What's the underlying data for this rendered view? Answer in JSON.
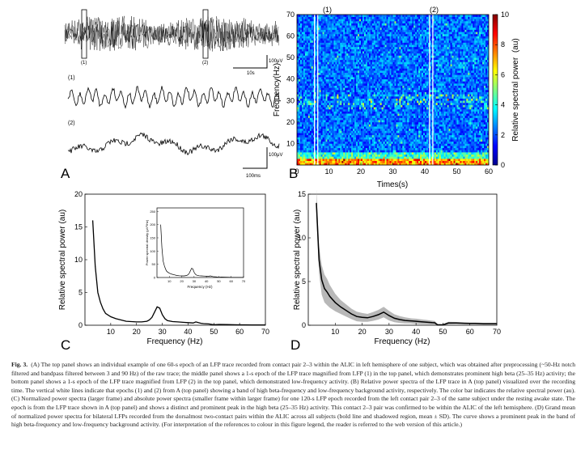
{
  "figure": {
    "panel_a": {
      "letter": "A",
      "epoch1_label": "(1)",
      "epoch2_label": "(2)",
      "top_scale_amp": "100μV",
      "top_scale_time": "10s",
      "mid_label": "(1)",
      "bottom_label": "(2)",
      "bottom_scale_amp": "100μV",
      "bottom_scale_time": "100ms"
    },
    "panel_b": {
      "letter": "B",
      "marker1": "(1)",
      "marker2": "(2)"
    },
    "panel_c": {
      "letter": "C"
    },
    "panel_d": {
      "letter": "D"
    }
  },
  "chart_data": [
    {
      "id": "B",
      "type": "heatmap",
      "xlabel": "Times(s)",
      "ylabel": "Frequency(Hz)",
      "colorbar_label": "Relative spectral power",
      "colorbar_label_suffix": "(au)",
      "xlim": [
        0,
        60
      ],
      "ylim": [
        0,
        70
      ],
      "xticks": [
        "0",
        "10",
        "20",
        "30",
        "40",
        "50",
        "60"
      ],
      "yticks": [
        "10",
        "20",
        "30",
        "40",
        "50",
        "60",
        "70"
      ],
      "colorbar_range": [
        0,
        10
      ],
      "colorbar_ticks": [
        "0",
        "2",
        "4",
        "6",
        "8",
        "10"
      ],
      "epoch_markers_s": [
        6,
        42
      ]
    },
    {
      "id": "C",
      "type": "line",
      "xlabel": "Frequency (Hz)",
      "ylabel": "Relative spectral power (au)",
      "xlim": [
        0,
        70
      ],
      "ylim": [
        0,
        20
      ],
      "xticks": [
        "10",
        "20",
        "30",
        "40",
        "50",
        "60",
        "70"
      ],
      "yticks": [
        "0",
        "5",
        "10",
        "15",
        "20"
      ],
      "x": [
        3,
        4,
        5,
        6,
        7,
        8,
        10,
        12,
        14,
        16,
        18,
        20,
        22,
        24,
        25,
        26,
        27,
        28,
        29,
        30,
        31,
        32,
        34,
        36,
        38,
        40,
        42,
        43,
        44,
        45,
        46,
        48,
        50,
        52,
        55,
        58,
        60,
        62,
        65,
        68,
        70
      ],
      "y": [
        16,
        9,
        5,
        3.5,
        2.5,
        1.8,
        1.3,
        1.0,
        0.8,
        0.6,
        0.55,
        0.5,
        0.5,
        0.6,
        0.8,
        1.2,
        2.0,
        2.8,
        2.6,
        1.6,
        1.0,
        0.7,
        0.55,
        0.5,
        0.45,
        0.4,
        0.35,
        0.5,
        0.4,
        0.3,
        0.25,
        0.2,
        0.08,
        0.12,
        0.1,
        0.08,
        0.06,
        0.06,
        0.05,
        0.05,
        0.05
      ],
      "inset": {
        "xlabel": "Frequency (Hz)",
        "ylabel": "Power spectral density (μV²/Hz)",
        "xticks": [
          "10",
          "20",
          "30",
          "40",
          "50",
          "60",
          "70"
        ],
        "yticks": [
          "0",
          "50",
          "100",
          "150",
          "200",
          "250"
        ]
      }
    },
    {
      "id": "D",
      "type": "line",
      "xlabel": "Frequency (Hz)",
      "ylabel": "Relative spectral power (au)",
      "xlim": [
        0,
        70
      ],
      "ylim": [
        0,
        15
      ],
      "xticks": [
        "10",
        "20",
        "30",
        "40",
        "50",
        "60",
        "70"
      ],
      "yticks": [
        "0",
        "5",
        "10",
        "15"
      ],
      "x": [
        3,
        4,
        5,
        6,
        7,
        8,
        10,
        12,
        14,
        16,
        18,
        20,
        22,
        24,
        26,
        28,
        30,
        32,
        34,
        36,
        38,
        40,
        42,
        44,
        46,
        47,
        48,
        50,
        52,
        55,
        58,
        60,
        62,
        65,
        68,
        70
      ],
      "mean": [
        14,
        7.5,
        5.2,
        4.2,
        3.8,
        3.3,
        2.6,
        2.1,
        1.7,
        1.3,
        1.0,
        0.9,
        0.85,
        1.0,
        1.2,
        1.5,
        1.1,
        0.8,
        0.65,
        0.55,
        0.5,
        0.45,
        0.4,
        0.35,
        0.3,
        0.28,
        0.05,
        0.05,
        0.25,
        0.25,
        0.22,
        0.2,
        0.2,
        0.18,
        0.18,
        0.18
      ],
      "sd": [
        1.5,
        1.6,
        1.7,
        1.6,
        1.5,
        1.3,
        1.0,
        0.8,
        0.7,
        0.6,
        0.55,
        0.5,
        0.45,
        0.5,
        0.55,
        0.6,
        0.55,
        0.45,
        0.4,
        0.35,
        0.3,
        0.3,
        0.28,
        0.25,
        0.22,
        0.2,
        0.05,
        0.05,
        0.15,
        0.12,
        0.1,
        0.1,
        0.1,
        0.1,
        0.1,
        0.1
      ]
    }
  ],
  "caption": {
    "lead": "Fig. 3.",
    "text": "(A) The top panel shows an individual example of one 60-s epoch of an LFP trace recorded from contact pair 2–3 within the ALIC in left hemisphere of one subject, which was obtained after preprocessing (~50-Hz notch filtered and bandpass filtered between 3 and 90 Hz) of the raw trace; the middle panel shows a 1-s epoch of the LFP trace magnified from LFP (1) in the top panel, which demonstrates prominent high beta (25–35 Hz) activity; the bottom panel shows a 1-s epoch of the LFP trace magnified from LFP (2) in the top panel, which demonstrated low-frequency activity. (B) Relative power spectra of the LFP trace in A (top panel) visualized over the recording time. The vertical white lines indicate that epochs (1) and (2) from A (top panel) showing a band of high beta-frequency and low-frequency background activity, respectively. The color bar indicates the relative spectral power (au). (C) Normalized power spectra (larger frame) and absolute power spectra (smaller frame within larger frame) for one 120-s LFP epoch recorded from the left contact pair 2–3 of the same subject under the resting awake state. The epoch is from the LFP trace shown in A (top panel) and shows a distinct and prominent peak in the high beta (25–35 Hz) activity. This contact 2–3 pair was confirmed to be within the ALIC of the left hemisphere. (D) Grand mean of normalized power spectra for bilateral LFPs recorded from the dorsalmost two-contact pairs within the ALIC across all subjects (bold line and shadowed region, mean ± SD). The curve shows a prominent peak in the band of high beta-frequency and low-frequency background activity. (For interpretation of the references to colour in this figure legend, the reader is referred to the web version of this article.)"
  }
}
